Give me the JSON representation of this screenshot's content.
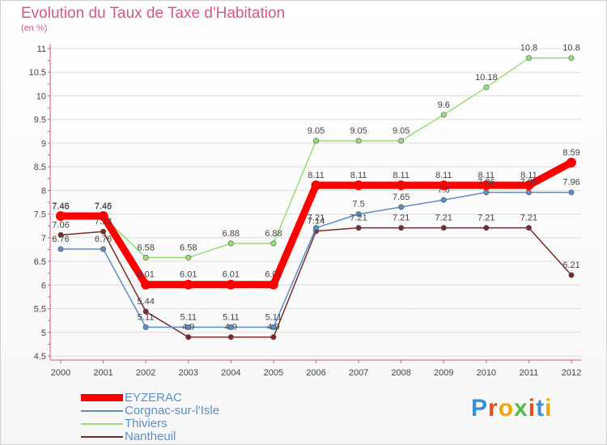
{
  "title": "Evolution du Taux de Taxe d'Habitation",
  "subtitle": "(en %)",
  "brand": "Proxiti",
  "brand_colors": [
    "#3a8fd6",
    "#e94e1b",
    "#f2a400",
    "#57b947",
    "#e94e1b",
    "#3a8fd6",
    "#f2a400"
  ],
  "chart_data": {
    "type": "line",
    "title": "Evolution du Taux de Taxe d'Habitation",
    "ylabel": "(en %)",
    "xlabel": "",
    "x": [
      "2000",
      "2001",
      "2002",
      "2003",
      "2004",
      "2005",
      "2006",
      "2007",
      "2008",
      "2009",
      "2010",
      "2011",
      "2012"
    ],
    "ylim": [
      4.5,
      11
    ],
    "yticks": [
      "4.5",
      "5",
      "5.5",
      "6",
      "6.5",
      "7",
      "7.5",
      "8",
      "8.5",
      "9",
      "9.5",
      "10",
      "10.5",
      "11"
    ],
    "grid": "horizontal",
    "legend": "bottom-left",
    "series": [
      {
        "name": "EYZERAC",
        "color": "#ff0000",
        "width": 9,
        "values": [
          7.46,
          7.46,
          6.01,
          6.01,
          6.01,
          6.01,
          8.11,
          8.11,
          8.11,
          8.11,
          8.11,
          8.11,
          8.59
        ],
        "labels": [
          "7.46",
          "7.46",
          "6.01",
          "6.01",
          "6.01",
          "6.01",
          "8.11",
          "8.11",
          "8.11",
          "8.11",
          "8.11",
          "8.11",
          "8.59"
        ]
      },
      {
        "name": "Corgnac-sur-l'Isle",
        "color": "#5b8ec9",
        "width": 1.5,
        "values": [
          6.76,
          6.76,
          5.11,
          5.11,
          5.11,
          5.11,
          7.21,
          7.5,
          7.65,
          7.8,
          7.96,
          7.96,
          7.96
        ],
        "labels": [
          "6.76",
          "6.76",
          "5.11",
          "5.11",
          "5.11",
          "5.11",
          "7.21",
          "7.5",
          "7.65",
          "7.8",
          "7.96",
          "7.96",
          "7.96"
        ]
      },
      {
        "name": "Thiviers",
        "color": "#99dd77",
        "width": 1.5,
        "values": [
          7.45,
          7.45,
          6.58,
          6.58,
          6.88,
          6.88,
          9.05,
          9.05,
          9.05,
          9.6,
          10.18,
          10.8,
          10.8
        ],
        "labels": [
          "7.45",
          "7.45",
          "6.58",
          "6.58",
          "6.88",
          "6.88",
          "9.05",
          "9.05",
          "9.05",
          "9.6",
          "10.18",
          "10.8",
          "10.8"
        ]
      },
      {
        "name": "Nantheuil",
        "color": "#7a2a2a",
        "width": 1.5,
        "values": [
          7.06,
          7.13,
          5.44,
          4.9,
          4.9,
          4.9,
          7.14,
          7.21,
          7.21,
          7.21,
          7.21,
          7.21,
          6.21
        ],
        "labels": [
          "7.06",
          "7.13",
          "5.44",
          "4.9",
          "4.9",
          "4.9",
          "7.14",
          "7.21",
          "7.21",
          "7.21",
          "7.21",
          "7.21",
          "6.21"
        ]
      }
    ]
  }
}
